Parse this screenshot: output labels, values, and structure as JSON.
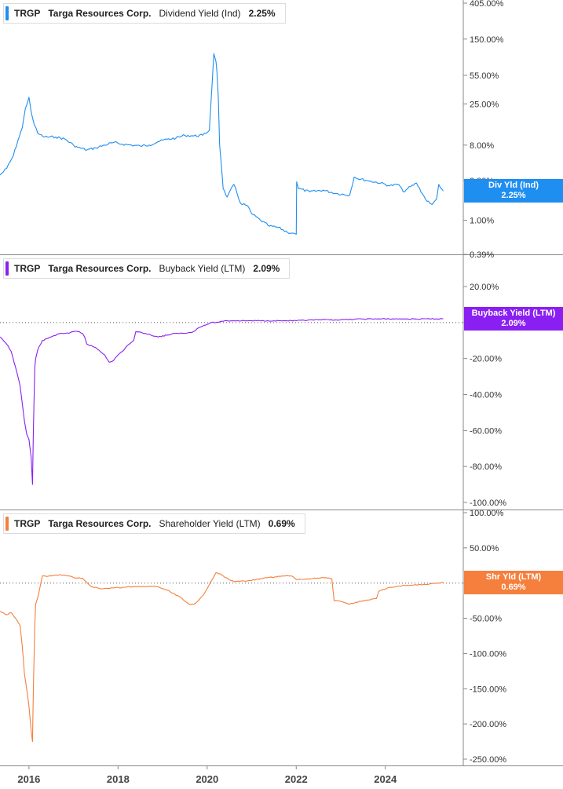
{
  "chart_data": [
    {
      "type": "line",
      "ticker": "TRGP",
      "company": "Targa Resources Corp.",
      "metric": "Dividend Yield (Ind)",
      "current_value": "2.25%",
      "badge_label": "Div Yld (Ind)",
      "badge_value": "2.25%",
      "color": "#1f8ef1",
      "scale": "log",
      "y_ticks": [
        "405.00%",
        "150.00%",
        "55.00%",
        "25.00%",
        "8.00%",
        "3.00%",
        "1.00%",
        "0.39%"
      ],
      "y_tick_values": [
        405,
        150,
        55,
        25,
        8,
        3,
        1,
        0.39
      ],
      "ylim": [
        0.39,
        405
      ],
      "x": [
        2015.35,
        2015.5,
        2015.65,
        2015.75,
        2015.85,
        2015.92,
        2016.0,
        2016.05,
        2016.12,
        2016.2,
        2016.35,
        2016.6,
        2016.8,
        2017.0,
        2017.1,
        2017.3,
        2017.5,
        2017.7,
        2017.9,
        2018.1,
        2018.3,
        2018.5,
        2018.7,
        2018.9,
        2019.1,
        2019.3,
        2019.5,
        2019.7,
        2019.9,
        2020.05,
        2020.15,
        2020.2,
        2020.22,
        2020.25,
        2020.28,
        2020.32,
        2020.36,
        2020.45,
        2020.6,
        2020.75,
        2020.9,
        2021.0,
        2021.2,
        2021.4,
        2021.6,
        2021.8,
        2021.95,
        2022.0,
        2022.01,
        2022.05,
        2022.3,
        2022.6,
        2022.9,
        2023.2,
        2023.3,
        2023.35,
        2023.6,
        2023.9,
        2024.1,
        2024.3,
        2024.4,
        2024.5,
        2024.7,
        2024.9,
        2025.0,
        2025.05,
        2025.15,
        2025.2,
        2025.3
      ],
      "y": [
        3.5,
        4.2,
        6,
        9,
        13,
        22,
        30,
        20,
        14,
        11,
        10,
        10,
        9.5,
        8,
        7.5,
        7,
        7.4,
        8,
        8.6,
        8.2,
        8,
        7.8,
        8,
        8.8,
        9.4,
        9.7,
        10.5,
        10.3,
        10.5,
        12,
        100,
        80,
        60,
        30,
        8,
        4.5,
        2.4,
        1.9,
        2.7,
        1.6,
        1.5,
        1.2,
        1,
        0.85,
        0.82,
        0.72,
        0.7,
        0.68,
        2.9,
        2.4,
        2.2,
        2.3,
        2.1,
        2,
        3.3,
        3.2,
        3,
        2.8,
        2.6,
        2.7,
        2.2,
        2.4,
        2.8,
        1.8,
        1.6,
        1.55,
        1.8,
        2.7,
        2.25
      ]
    },
    {
      "type": "line",
      "ticker": "TRGP",
      "company": "Targa Resources Corp.",
      "metric": "Buyback Yield (LTM)",
      "current_value": "2.09%",
      "badge_label": "Buyback Yield (LTM)",
      "badge_value": "2.09%",
      "color": "#8a1ff1",
      "y_ticks": [
        "20.00%",
        "0.00%",
        "-20.00%",
        "-40.00%",
        "-60.00%",
        "-80.00%",
        "-100.00%"
      ],
      "y_tick_values": [
        20,
        0,
        -20,
        -40,
        -60,
        -80,
        -100
      ],
      "ylim": [
        -100,
        20
      ],
      "x": [
        2015.35,
        2015.5,
        2015.6,
        2015.7,
        2015.8,
        2015.85,
        2015.9,
        2015.95,
        2016.0,
        2016.05,
        2016.08,
        2016.1,
        2016.13,
        2016.15,
        2016.2,
        2016.3,
        2016.5,
        2016.7,
        2016.9,
        2017.0,
        2017.1,
        2017.2,
        2017.25,
        2017.3,
        2017.5,
        2017.6,
        2017.7,
        2017.8,
        2017.9,
        2018.0,
        2018.1,
        2018.2,
        2018.3,
        2018.35,
        2018.4,
        2018.6,
        2018.9,
        2019.1,
        2019.3,
        2019.5,
        2019.7,
        2019.8,
        2019.9,
        2020.0,
        2020.1,
        2020.2,
        2020.4,
        2020.6,
        2021.0,
        2021.5,
        2022.0,
        2022.5,
        2023.0,
        2023.5,
        2024.0,
        2024.5,
        2025.0,
        2025.3
      ],
      "y": [
        -8,
        -12,
        -16,
        -25,
        -35,
        -45,
        -55,
        -62,
        -65,
        -75,
        -90,
        -60,
        -25,
        -20,
        -15,
        -10,
        -8,
        -6,
        -6,
        -5,
        -5,
        -6,
        -8,
        -12,
        -14,
        -16,
        -18,
        -22,
        -21,
        -18,
        -16,
        -13,
        -11,
        -10,
        -5,
        -6,
        -8,
        -7,
        -6,
        -6,
        -5,
        -3,
        -2,
        -1,
        0,
        0,
        1,
        1,
        1,
        1,
        1,
        1.5,
        1.5,
        2,
        2,
        2,
        2,
        2.09
      ]
    },
    {
      "type": "line",
      "ticker": "TRGP",
      "company": "Targa Resources Corp.",
      "metric": "Shareholder Yield (LTM)",
      "current_value": "0.69%",
      "badge_label": "Shr Yld (LTM)",
      "badge_value": "0.69%",
      "color": "#f57f3c",
      "y_ticks": [
        "100.00%",
        "50.00%",
        "0.00%",
        "-50.00%",
        "-100.00%",
        "-150.00%",
        "-200.00%",
        "-250.00%"
      ],
      "y_tick_values": [
        100,
        50,
        0,
        -50,
        -100,
        -150,
        -200,
        -250
      ],
      "ylim": [
        -250,
        100
      ],
      "x": [
        2015.35,
        2015.5,
        2015.6,
        2015.7,
        2015.8,
        2015.85,
        2015.9,
        2015.95,
        2016.0,
        2016.05,
        2016.08,
        2016.1,
        2016.13,
        2016.15,
        2016.2,
        2016.3,
        2016.5,
        2016.7,
        2016.9,
        2017.0,
        2017.2,
        2017.4,
        2017.6,
        2017.9,
        2018.1,
        2018.4,
        2018.6,
        2018.9,
        2019.1,
        2019.4,
        2019.6,
        2019.7,
        2019.8,
        2019.9,
        2020.0,
        2020.2,
        2020.3,
        2020.4,
        2020.6,
        2020.9,
        2021.1,
        2021.4,
        2021.7,
        2021.9,
        2022.0,
        2022.3,
        2022.6,
        2022.8,
        2022.85,
        2023.0,
        2023.2,
        2023.5,
        2023.8,
        2023.85,
        2024.1,
        2024.5,
        2024.9,
        2025.3
      ],
      "y": [
        -40,
        -45,
        -42,
        -50,
        -60,
        -90,
        -130,
        -150,
        -175,
        -210,
        -225,
        -150,
        -60,
        -30,
        -20,
        10,
        10,
        12,
        10,
        8,
        7,
        -5,
        -8,
        -7,
        -6,
        -5,
        -5,
        -5,
        -10,
        -20,
        -30,
        -30,
        -25,
        -18,
        -8,
        15,
        13,
        8,
        2,
        3,
        5,
        8,
        10,
        10,
        5,
        6,
        8,
        6,
        -25,
        -26,
        -30,
        -25,
        -22,
        -12,
        -6,
        -3,
        -2,
        0.69
      ]
    }
  ],
  "x_axis": {
    "ticks": [
      "2016",
      "2018",
      "2020",
      "2022",
      "2024"
    ],
    "tick_values": [
      2016,
      2018,
      2020,
      2022,
      2024
    ],
    "xlim": [
      2015.35,
      2025.75
    ]
  }
}
